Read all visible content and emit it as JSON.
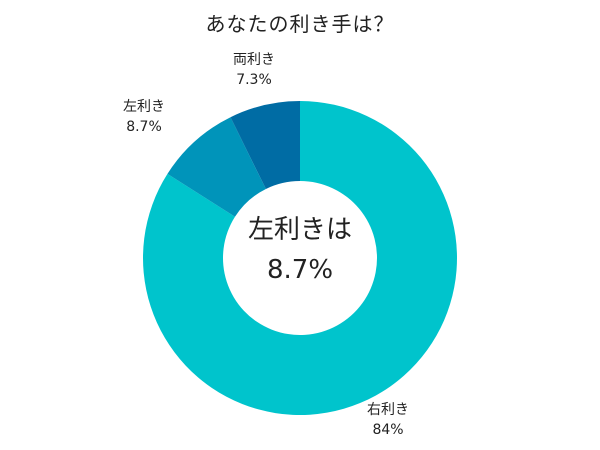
{
  "title": "あなたの利き手は？",
  "chart_data": {
    "type": "pie",
    "donut": true,
    "title": "あなたの利き手は？",
    "center_text": {
      "line1": "左利きは",
      "line2": "8.7%"
    },
    "slices": [
      {
        "label": "右利き",
        "value": 84,
        "display": "84%",
        "color": "#00C4CC"
      },
      {
        "label": "左利き",
        "value": 8.7,
        "display": "8.7%",
        "color": "#0094BA"
      },
      {
        "label": "両利き",
        "value": 7.3,
        "display": "7.3%",
        "color": "#006CA4"
      }
    ]
  }
}
